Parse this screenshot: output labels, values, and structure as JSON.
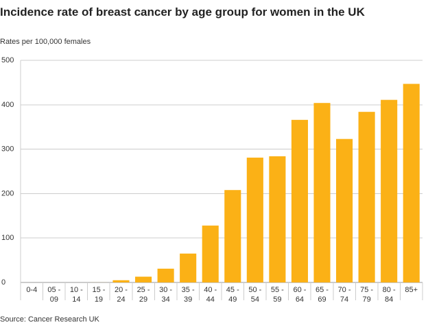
{
  "colors": {
    "bar": "#fbb116",
    "grid": "#cccccc",
    "axis": "#999999",
    "text": "#333333"
  },
  "chart_data": {
    "type": "bar",
    "title": "Incidence rate of breast cancer by age group for women in the UK",
    "ylabel": "Rates per 100,000 females",
    "source": "Source: Cancer Research UK",
    "ylim": [
      0,
      500
    ],
    "yticks": [
      0,
      100,
      200,
      300,
      400,
      500
    ],
    "grid": true,
    "categories": [
      [
        "0-4"
      ],
      [
        "05 -",
        "09"
      ],
      [
        "10 -",
        "14"
      ],
      [
        "15 -",
        "19"
      ],
      [
        "20 -",
        "24"
      ],
      [
        "25 -",
        "29"
      ],
      [
        "30 -",
        "34"
      ],
      [
        "35 -",
        "39"
      ],
      [
        "40 -",
        "44"
      ],
      [
        "45 -",
        "49"
      ],
      [
        "50 -",
        "54"
      ],
      [
        "55 -",
        "59"
      ],
      [
        "60 -",
        "64"
      ],
      [
        "65 -",
        "69"
      ],
      [
        "70 -",
        "74"
      ],
      [
        "75 -",
        "79"
      ],
      [
        "80 -",
        "84"
      ],
      [
        "85+"
      ]
    ],
    "values": [
      0,
      0,
      0,
      0.1,
      5,
      13,
      31,
      65,
      128,
      208,
      281,
      284,
      366,
      404,
      323,
      384,
      411,
      447
    ]
  }
}
